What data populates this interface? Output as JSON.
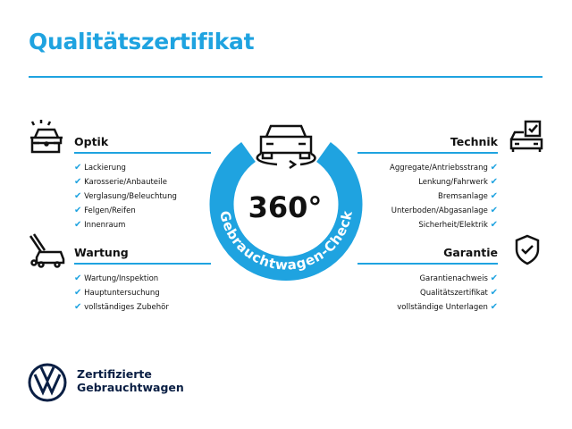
{
  "title": "Qualitätszertifikat",
  "center": {
    "label": "360°",
    "ring_text": "Gebrauchtwagen-Check"
  },
  "sections": {
    "optik": {
      "heading": "Optik",
      "items": [
        "Lackierung",
        "Karosserie/Anbauteile",
        "Verglasung/Beleuchtung",
        "Felgen/Reifen",
        "Innenraum"
      ]
    },
    "wartung": {
      "heading": "Wartung",
      "items": [
        "Wartung/Inspektion",
        "Hauptuntersuchung",
        "vollständiges Zubehör"
      ]
    },
    "technik": {
      "heading": "Technik",
      "items": [
        "Aggregate/Antriebsstrang",
        "Lenkung/Fahrwerk",
        "Bremsanlage",
        "Unterboden/Abgasanlage",
        "Sicherheit/Elektrik"
      ]
    },
    "garantie": {
      "heading": "Garantie",
      "items": [
        "Garantienachweis",
        "Qualitätszertifikat",
        "vollständige Unterlagen"
      ]
    }
  },
  "brand": {
    "line1": "Zertifizierte",
    "line2": "Gebrauchtwagen",
    "logo": "VW"
  },
  "colors": {
    "accent": "#1fa3e0",
    "navy": "#0a1f44"
  },
  "icons": [
    "car-lights-icon",
    "car-wash-icon",
    "car-check-icon",
    "shield-check-icon",
    "car-rotate-icon",
    "checkmark-icon"
  ]
}
